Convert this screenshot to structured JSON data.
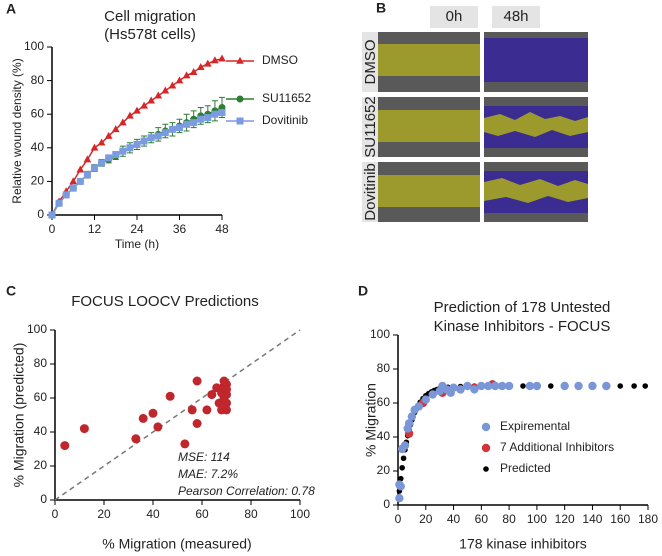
{
  "chart_data": [
    {
      "type": "line",
      "panel": "A",
      "title": "Cell migration",
      "subtitle": "(Hs578t cells)",
      "x_label": "Time (h)",
      "y_label": "Relative wound density (%)",
      "x": [
        0,
        2,
        4,
        6,
        8,
        10,
        12,
        14,
        16,
        18,
        20,
        22,
        24,
        26,
        28,
        30,
        32,
        34,
        36,
        38,
        40,
        42,
        44,
        46,
        48
      ],
      "series": [
        {
          "name": "DMSO",
          "color": "#d62728",
          "marker": "triangle",
          "values": [
            0,
            8,
            14,
            20,
            27,
            33,
            40,
            43,
            47,
            51,
            55,
            59,
            62,
            65,
            68,
            71,
            74,
            77,
            80,
            83,
            85,
            88,
            90,
            92,
            93
          ]
        },
        {
          "name": "SU11652",
          "color": "#2e7d32",
          "marker": "circle",
          "values": [
            0,
            7,
            12,
            16,
            20,
            24,
            28,
            31,
            33,
            35,
            38,
            40,
            42,
            44,
            46,
            48,
            50,
            51,
            53,
            55,
            57,
            59,
            60,
            62,
            64
          ],
          "errors": [
            0,
            1,
            1,
            1,
            1,
            2,
            2,
            2,
            2,
            2,
            3,
            3,
            3,
            3,
            3,
            4,
            4,
            4,
            4,
            5,
            5,
            5,
            5,
            6,
            6
          ]
        },
        {
          "name": "Dovitinib",
          "color": "#7b9be0",
          "marker": "square",
          "values": [
            0,
            7,
            12,
            16,
            20,
            24,
            28,
            31,
            34,
            36,
            38,
            40,
            42,
            44,
            46,
            47,
            49,
            51,
            52,
            54,
            55,
            57,
            58,
            60,
            61
          ]
        }
      ],
      "xlim": [
        0,
        48
      ],
      "xticks": [
        0,
        12,
        24,
        36,
        48
      ],
      "ylim": [
        0,
        100
      ],
      "yticks": [
        0,
        20,
        40,
        60,
        80,
        100
      ]
    },
    {
      "type": "scatter",
      "panel": "C",
      "title": "FOCUS LOOCV Predictions",
      "x_label": "% Migration (measured)",
      "y_label": "% Migration (predicted)",
      "diagonal": true,
      "series": [
        {
          "color": "#c0272d",
          "marker": "circle",
          "x": [
            4,
            12,
            33,
            36,
            40,
            42,
            47,
            53,
            56,
            58,
            58,
            62,
            64,
            66,
            67,
            68,
            68,
            69,
            69,
            70,
            70,
            70,
            70,
            70,
            69
          ],
          "values": [
            32,
            42,
            36,
            48,
            51,
            43,
            61,
            33,
            53,
            70,
            45,
            53,
            62,
            66,
            57,
            63,
            53,
            70,
            60,
            65,
            53,
            57,
            68,
            62,
            67
          ]
        }
      ],
      "annotations": [
        "MSE: 114",
        "MAE: 7.2%",
        "Pearson Correlation: 0.78"
      ],
      "xlim": [
        0,
        100
      ],
      "xticks": [
        0,
        20,
        40,
        60,
        80,
        100
      ],
      "ylim": [
        0,
        100
      ],
      "yticks": [
        0,
        20,
        40,
        60,
        80,
        100
      ]
    },
    {
      "type": "scatter",
      "panel": "D",
      "title": "Prediction of 178 Untested",
      "subtitle": "Kinase Inhibitors - FOCUS",
      "x_label": "178 kinase inhibitors",
      "y_label": "% Migration",
      "series": [
        {
          "name": "Expiremental",
          "color": "#7b96d6",
          "marker": "circle",
          "x": [
            1,
            1,
            2,
            3,
            5,
            7,
            8,
            10,
            12,
            15,
            20,
            25,
            30,
            32,
            35,
            38,
            40,
            45,
            50,
            55,
            60,
            65,
            70,
            75,
            80,
            95,
            100,
            120,
            130,
            140,
            150
          ],
          "values": [
            4,
            12,
            11,
            33,
            35,
            45,
            48,
            52,
            56,
            58,
            62,
            65,
            67,
            70,
            68,
            66,
            69,
            68,
            70,
            68,
            70,
            70,
            70,
            70,
            70,
            70,
            70,
            70,
            70,
            70,
            70
          ]
        },
        {
          "name": "7 Additional Inhibitors",
          "color": "#d1343b",
          "marker": "circle",
          "x": [
            3,
            8,
            18,
            32,
            45,
            55,
            68
          ],
          "values": [
            33,
            42,
            60,
            66,
            68,
            69,
            71
          ]
        },
        {
          "name": "Predicted",
          "color": "#000000",
          "marker": "circle",
          "x": [
            1,
            2,
            3,
            4,
            5,
            6,
            7,
            8,
            9,
            10,
            12,
            14,
            16,
            18,
            20,
            22,
            24,
            26,
            28,
            30,
            33,
            36,
            40,
            45,
            50,
            55,
            60,
            65,
            70,
            75,
            80,
            90,
            100,
            110,
            120,
            130,
            140,
            150,
            160,
            170,
            178
          ],
          "values": [
            8.2,
            15.5,
            21.9,
            27.5,
            32.5,
            36.9,
            40.8,
            44.2,
            47.3,
            50,
            54.4,
            57.8,
            60.5,
            62.6,
            64.3,
            65.5,
            66.5,
            67.3,
            67.9,
            68.4,
            68.9,
            69.2,
            69.5,
            69.7,
            69.9,
            70,
            70,
            70,
            70,
            70,
            70,
            70,
            70,
            70,
            70,
            70,
            70,
            70,
            70,
            70,
            70
          ]
        }
      ],
      "xlim": [
        0,
        180
      ],
      "xticks": [
        0,
        20,
        40,
        60,
        80,
        100,
        120,
        140,
        160,
        180
      ],
      "ylim": [
        0,
        100
      ],
      "yticks": [
        0,
        20,
        40,
        60,
        80,
        100
      ]
    }
  ],
  "panel_b": {
    "label": "B",
    "columns": [
      "0h",
      "48h"
    ],
    "rows": [
      "DMSO",
      "SU11652",
      "Dovitinib"
    ]
  }
}
